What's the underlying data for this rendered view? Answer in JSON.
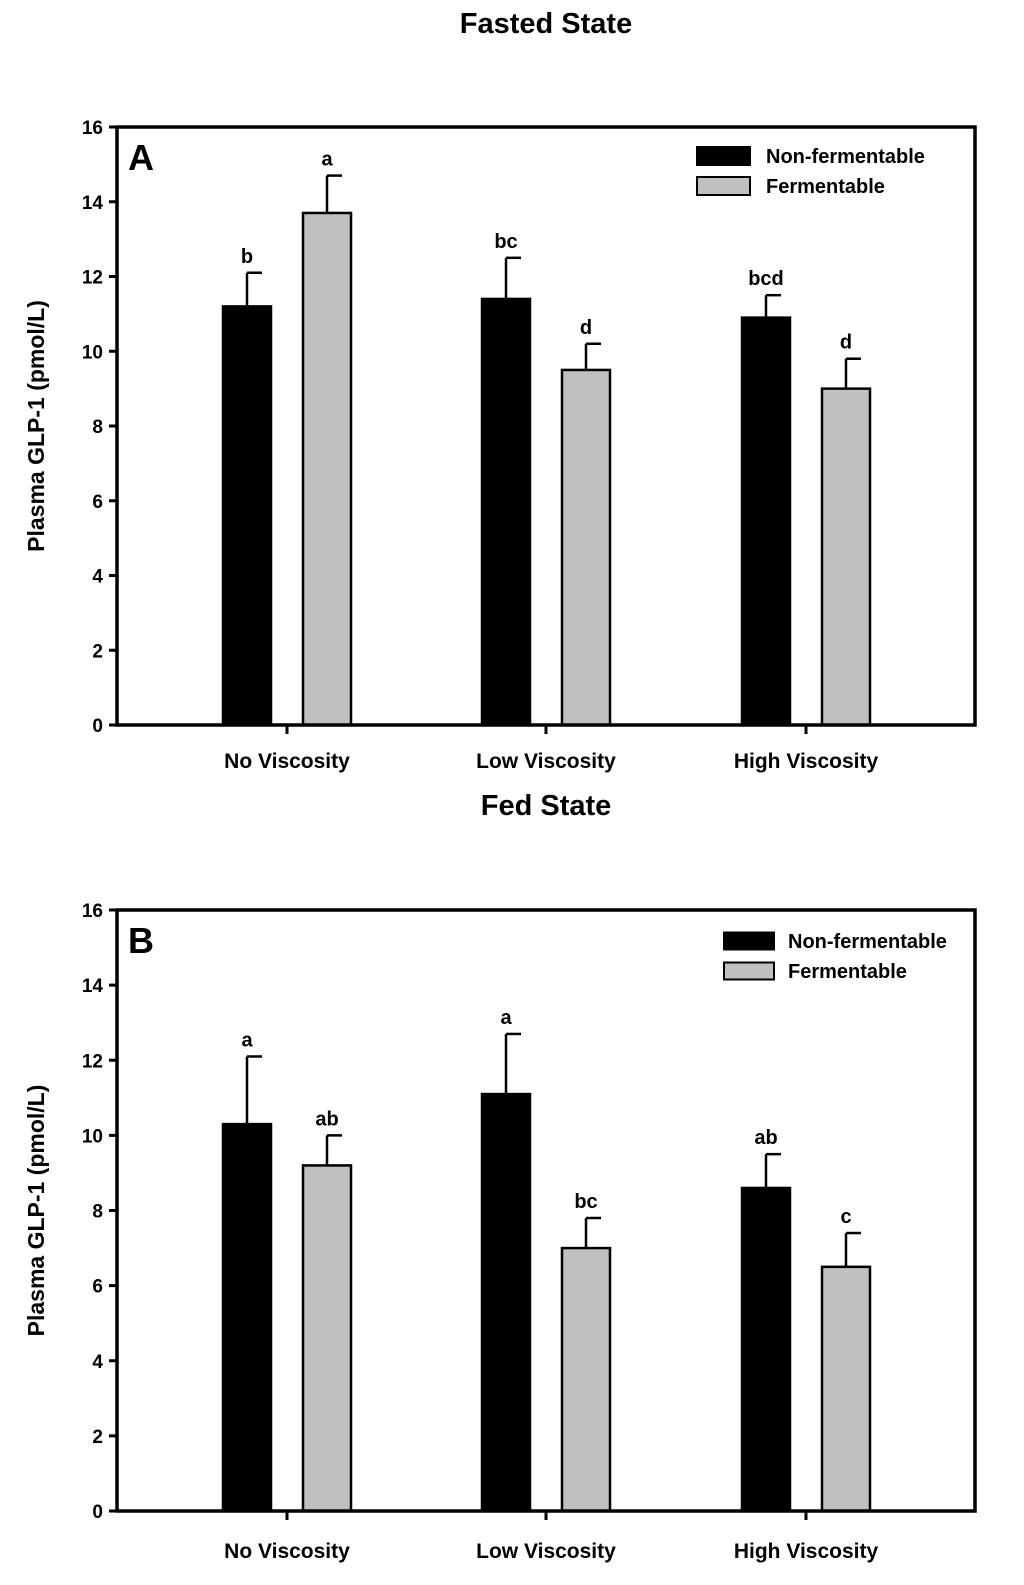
{
  "chart_data": [
    {
      "type": "bar",
      "title": "Fasted State",
      "panel": "A",
      "ylabel": "Plasma GLP-1 (pmol/L)",
      "xlabel": "",
      "ylim": [
        0,
        16
      ],
      "yticks": [
        "0",
        "2",
        "4",
        "6",
        "8",
        "10",
        "12",
        "14",
        "16"
      ],
      "categories": [
        "No Viscosity",
        "Low Viscosity",
        "High Viscosity"
      ],
      "legend_position": "top-right",
      "series": [
        {
          "name": "Non-fermentable",
          "color": "#000000",
          "values": [
            11.2,
            11.4,
            10.9
          ],
          "errors": [
            0.9,
            1.1,
            0.6
          ],
          "labels": [
            "b",
            "bc",
            "bcd"
          ]
        },
        {
          "name": "Fermentable",
          "color": "#c0c0c0",
          "values": [
            13.7,
            9.5,
            9.0
          ],
          "errors": [
            1.0,
            0.7,
            0.8
          ],
          "labels": [
            "a",
            "d",
            "d"
          ]
        }
      ]
    },
    {
      "type": "bar",
      "title": "Fed State",
      "panel": "B",
      "ylabel": "Plasma GLP-1 (pmol/L)",
      "xlabel": "",
      "ylim": [
        0,
        16
      ],
      "yticks": [
        "0",
        "2",
        "4",
        "6",
        "8",
        "10",
        "12",
        "14",
        "16"
      ],
      "categories": [
        "No Viscosity",
        "Low Viscosity",
        "High Viscosity"
      ],
      "legend_position": "top-right",
      "series": [
        {
          "name": "Non-fermentable",
          "color": "#000000",
          "values": [
            10.3,
            11.1,
            8.6
          ],
          "errors": [
            1.8,
            1.6,
            0.9
          ],
          "labels": [
            "a",
            "a",
            "ab"
          ]
        },
        {
          "name": "Fermentable",
          "color": "#c0c0c0",
          "values": [
            9.2,
            7.0,
            6.5
          ],
          "errors": [
            0.8,
            0.8,
            0.9
          ],
          "labels": [
            "ab",
            "bc",
            "c"
          ]
        }
      ]
    }
  ]
}
